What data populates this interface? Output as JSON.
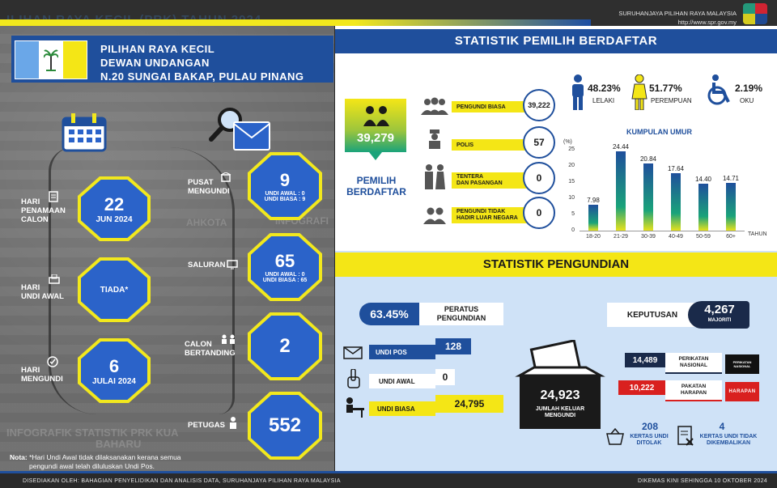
{
  "top": {
    "ghost_title": "ILIHAN RAYA KECIL (PRK) TAHUN 2024",
    "org_name": "SURUHANJAYA PILIHAN RAYA MALAYSIA",
    "org_url": "http://www.spr.gov.my"
  },
  "header": {
    "line1": "PILIHAN RAYA KECIL",
    "line2": "DEWAN UNDANGAN",
    "line3": "N.20 SUNGAI BAKAP, PULAU PINANG"
  },
  "left": {
    "penamaan": {
      "label1": "HARI",
      "label2": "PENAMAAN",
      "label3": "CALON",
      "day": "22",
      "month": "JUN 2024"
    },
    "undi_awal": {
      "label1": "HARI",
      "label2": "UNDI AWAL",
      "value": "TIADA*"
    },
    "mengundi": {
      "label1": "HARI",
      "label2": "MENGUNDI",
      "day": "6",
      "month": "JULAI 2024"
    },
    "pusat": {
      "label1": "PUSAT",
      "label2": "MENGUNDI",
      "value": "9",
      "sub1": "UNDI AWAL : 0",
      "sub2": "UNDI BIASA : 9"
    },
    "saluran": {
      "label": "SALURAN",
      "value": "65",
      "sub1": "UNDI AWAL : 0",
      "sub2": "UNDI BIASA : 65"
    },
    "calon": {
      "label1": "CALON",
      "label2": "BERTANDING",
      "value": "2"
    },
    "petugas": {
      "label": "PETUGAS",
      "value": "552"
    },
    "ghost_bottom1": "INFOGRAFIK STATISTIK PRK KUA",
    "ghost_bottom2": "BAHARU",
    "note_prefix": "Nota:",
    "note_line1": "*Hari Undi Awal tidak dilaksanakan kerana  semua",
    "note_line2": "pengundi awal telah diluluskan Undi Pos.",
    "map_ghost1": "AHKOTA",
    "map_ghost2": "INFOGRAFI"
  },
  "pemilih": {
    "title": "STATISTIK PEMILIH BERDAFTAR",
    "total": "39,279",
    "total_label1": "PEMILIH",
    "total_label2": "BERDAFTAR",
    "categories": [
      {
        "label": "PENGUNDI BIASA",
        "value": "39,222"
      },
      {
        "label": "POLIS",
        "value": "57"
      },
      {
        "label1": "TENTERA",
        "label2": "DAN PASANGAN",
        "value": "0"
      },
      {
        "label1": "PENGUNDI TIDAK",
        "label2": "HADIR LUAR NEGARA",
        "value": "0"
      }
    ],
    "lelaki_pct": "48.23%",
    "lelaki_label": "LELAKI",
    "perempuan_pct": "51.77%",
    "perempuan_label": "PEREMPUAN",
    "oku_pct": "2.19%",
    "oku_label": "OKU",
    "colors": {
      "blue": "#1f4f9c",
      "yellow": "#f4e616"
    }
  },
  "chart_data": {
    "type": "bar",
    "title": "KUMPULAN UMUR",
    "categories": [
      "18-20",
      "21-29",
      "30-39",
      "40-49",
      "50-59",
      "60+"
    ],
    "values": [
      7.98,
      24.44,
      20.84,
      17.64,
      14.4,
      14.71
    ],
    "value_labels": [
      "7.98",
      "24.44",
      "20.84",
      "17.64",
      "14.40",
      "14.71"
    ],
    "ylabel": "(%)",
    "xlabel": "TAHUN",
    "ylim": [
      0,
      25
    ],
    "yticks": [
      "0",
      "5",
      "10",
      "15",
      "20",
      "25"
    ]
  },
  "pengundian": {
    "title": "STATISTIK PENGUNDIAN",
    "peratus": "63.45%",
    "peratus_label1": "PERATUS",
    "peratus_label2": "PENGUNDIAN",
    "undi_pos_label": "UNDI POS",
    "undi_pos": "128",
    "undi_awal_label": "UNDI AWAL",
    "undi_awal": "0",
    "undi_biasa_label": "UNDI BIASA",
    "undi_biasa": "24,795",
    "jumlah": "24,923",
    "jumlah_label1": "JUMLAH KELUAR",
    "jumlah_label2": "MENGUNDI",
    "keputusan_label": "KEPUTUSAN",
    "majoriti": "4,267",
    "majoriti_label": "MAJORITI",
    "pn_votes": "14,489",
    "pn_label1": "PERIKATAN",
    "pn_label2": "NASIONAL",
    "pn_logo1": "PERIKATAN",
    "pn_logo2": "NASIONAL",
    "ph_votes": "10,222",
    "ph_label1": "PAKATAN",
    "ph_label2": "HARAPAN",
    "ph_logo": "HARAPAN",
    "ditolak": "208",
    "ditolak_label1": "KERTAS UNDI",
    "ditolak_label2": "DITOLAK",
    "tidak_kembali": "4",
    "tidak_kembali_label1": "KERTAS UNDI TIDAK",
    "tidak_kembali_label2": "DIKEMBALIKAN"
  },
  "footer": {
    "left": "DISEDIAKAN OLEH: BAHAGIAN PENYELIDIKAN DAN ANALISIS DATA, SURUHANJAYA PILIHAN RAYA MALAYSIA",
    "right": "DIKEMAS KINI SEHINGGA 10 OKTOBER 2024"
  }
}
